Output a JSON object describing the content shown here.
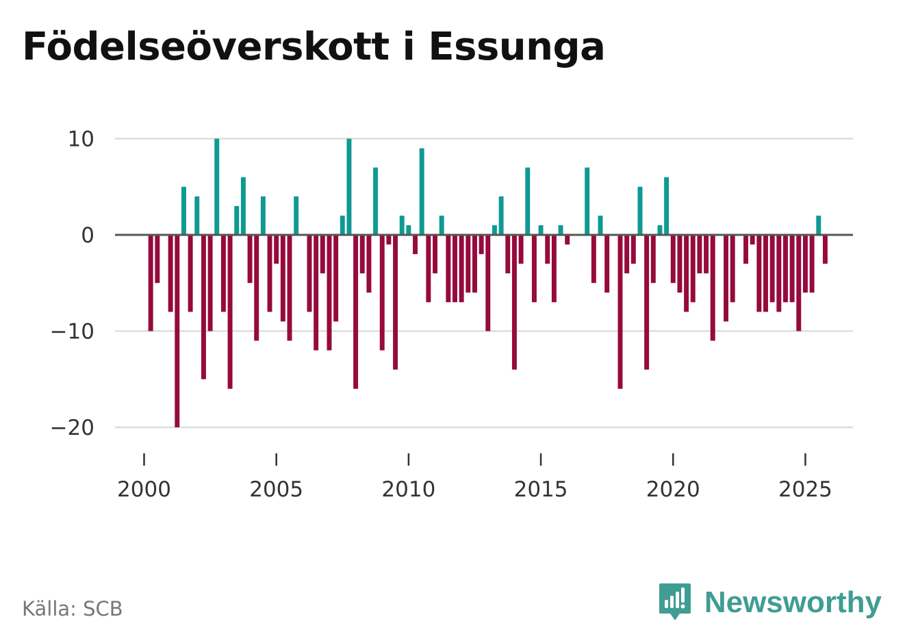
{
  "title": "Födelseöverskott i Essunga",
  "source": "Källa: SCB",
  "brand": {
    "name": "Newsworthy",
    "icon": "newsworthy-logo-icon"
  },
  "colors": {
    "positive": "#0e9a93",
    "negative": "#960a3c",
    "zero_line": "#555555",
    "grid": "#dddddd"
  },
  "chart_data": {
    "type": "bar",
    "title": "Födelseöverskott i Essunga",
    "xlabel": "",
    "ylabel": "",
    "period": "quarterly",
    "start": 2000.25,
    "step": 0.25,
    "ylim": [
      -22,
      11
    ],
    "xlim": [
      1998.9,
      2026.8
    ],
    "yticks": [
      10,
      0,
      -10,
      -20
    ],
    "ytick_labels": [
      "10",
      "0",
      "−10",
      "−20"
    ],
    "xticks": [
      2000,
      2005,
      2010,
      2015,
      2020,
      2025
    ],
    "xtick_labels": [
      "2000",
      "2005",
      "2010",
      "2015",
      "2020",
      "2025"
    ],
    "values": [
      -10,
      -5,
      0,
      -8,
      -20,
      5,
      -8,
      4,
      -15,
      -10,
      10,
      -8,
      -16,
      3,
      6,
      -5,
      -11,
      4,
      -8,
      -3,
      -9,
      -11,
      4,
      0,
      -8,
      -12,
      -4,
      -12,
      -9,
      2,
      10,
      -16,
      -4,
      -6,
      7,
      -12,
      -1,
      -14,
      2,
      1,
      -2,
      9,
      -7,
      -4,
      2,
      -7,
      -7,
      -7,
      -6,
      -6,
      -2,
      -10,
      1,
      4,
      -4,
      -14,
      -3,
      7,
      -7,
      1,
      -3,
      -7,
      1,
      -1,
      0,
      0,
      7,
      -5,
      2,
      -6,
      0,
      -16,
      -4,
      -3,
      5,
      -14,
      -5,
      1,
      6,
      -5,
      -6,
      -8,
      -7,
      -4,
      -4,
      -11,
      0,
      -9,
      -7,
      0,
      -3,
      -1,
      -8,
      -8,
      -7,
      -8,
      -7,
      -7,
      -10,
      -6,
      -6,
      2,
      -3
    ]
  }
}
